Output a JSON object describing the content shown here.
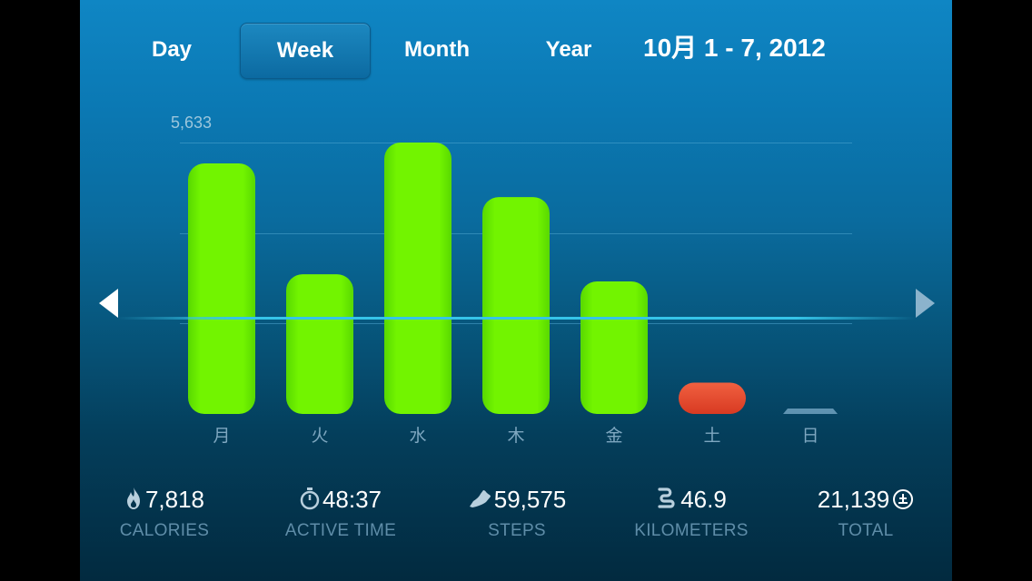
{
  "tabs": [
    {
      "label": "Day",
      "selected": false
    },
    {
      "label": "Week",
      "selected": true
    },
    {
      "label": "Month",
      "selected": false
    },
    {
      "label": "Year",
      "selected": false
    }
  ],
  "date_range": "10月 1 - 7, 2012",
  "navigation": {
    "prev_icon": "triangle-left-icon",
    "next_icon": "triangle-right-icon"
  },
  "colors": {
    "goal_met": "#6ef000",
    "below_goal": "#e84329",
    "no_data": "#5f93b1",
    "goal_line": "#35c4e8"
  },
  "chart_data": {
    "type": "bar",
    "max_label": "5,633",
    "categories": [
      "月",
      "火",
      "水",
      "木",
      "金",
      "土",
      "日"
    ],
    "values": [
      5200,
      2900,
      5633,
      4500,
      2750,
      650,
      0
    ],
    "status": [
      "above",
      "above",
      "above",
      "above",
      "above",
      "below",
      "none"
    ],
    "ylim": [
      0,
      5633
    ],
    "gridlines": [
      5633,
      3750,
      1880
    ],
    "goal": 2000
  },
  "stats": [
    {
      "icon": "flame-icon",
      "value": "7,818",
      "label": "CALORIES"
    },
    {
      "icon": "stopwatch-icon",
      "value": "48:37",
      "label": "ACTIVE TIME"
    },
    {
      "icon": "shoe-icon",
      "value": "59,575",
      "label": "STEPS"
    },
    {
      "icon": "route-icon",
      "value": "46.9",
      "label": "KILOMETERS"
    },
    {
      "icon": "total-plus-icon",
      "value": "21,139",
      "label": "TOTAL"
    }
  ]
}
